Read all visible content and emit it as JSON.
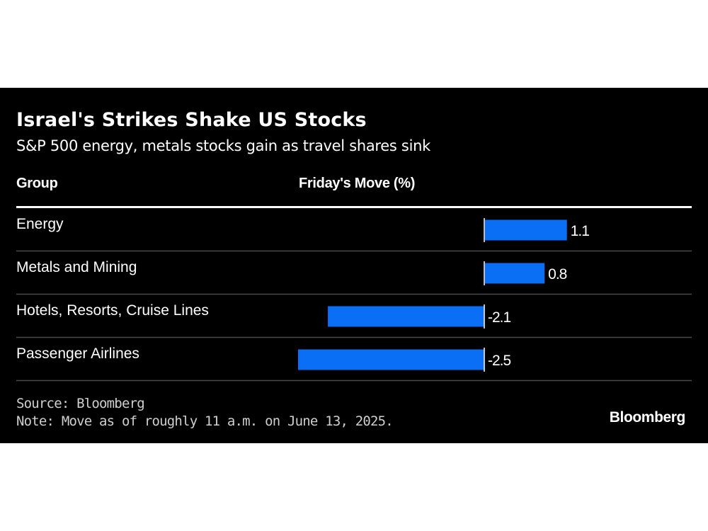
{
  "chart_data": {
    "type": "bar",
    "orientation": "horizontal",
    "title": "Israel's Strikes Shake US Stocks",
    "subtitle": "S&P 500 energy, metals stocks gain as travel shares sink",
    "column_headers": {
      "group": "Group",
      "value": "Friday's Move (%)"
    },
    "categories": [
      "Energy",
      "Metals and Mining",
      "Hotels, Resorts, Cruise Lines",
      "Passenger Airlines"
    ],
    "values": [
      1.1,
      0.8,
      -2.1,
      -2.5
    ],
    "value_labels": [
      "1.1",
      "0.8",
      "-2.1",
      "-2.5"
    ],
    "xlim": [
      -2.5,
      1.1
    ],
    "xlabel": "",
    "ylabel": "",
    "grid": false,
    "bar_color": "#0b6ff5",
    "source": "Source: Bloomberg",
    "note": "Note: Move as of roughly 11 a.m. on June 13, 2025.",
    "brand": "Bloomberg"
  }
}
